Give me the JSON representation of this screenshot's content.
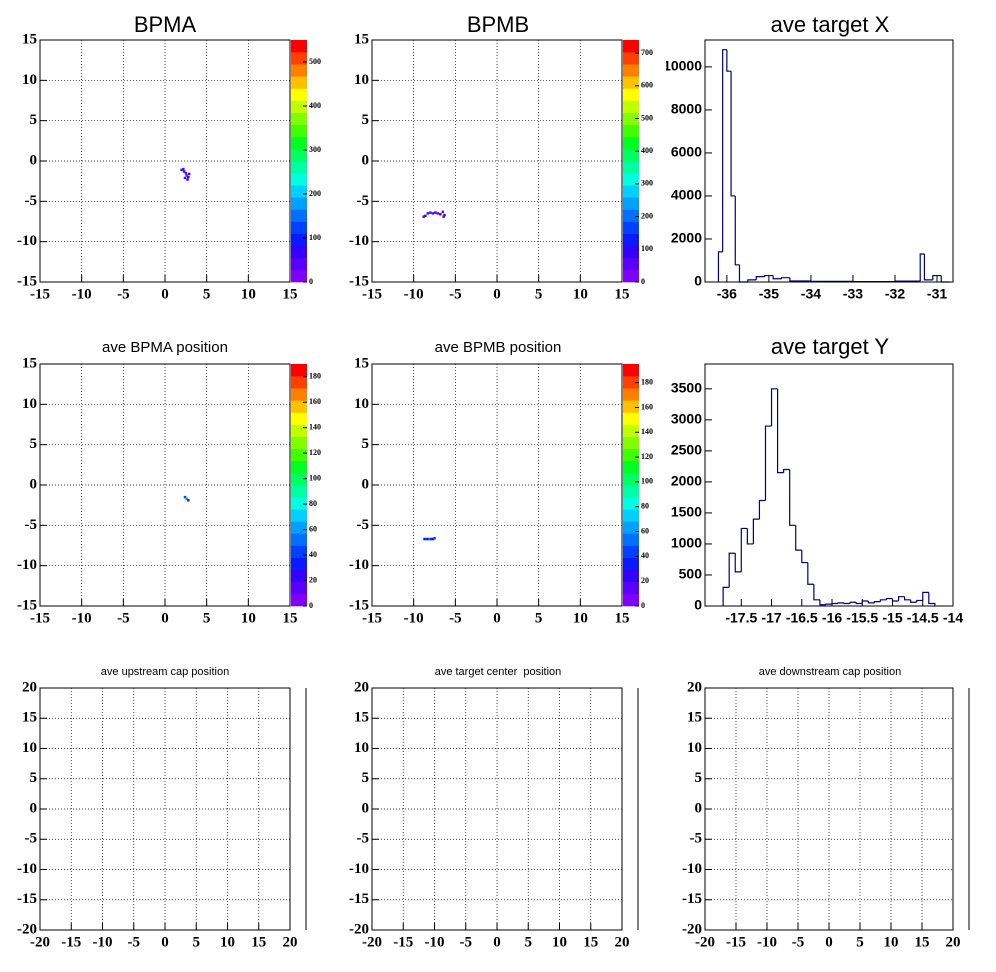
{
  "chart_data": [
    {
      "type": "hist2d",
      "title": "BPMA",
      "xlim": [
        -15,
        15
      ],
      "ylim": [
        -15,
        15
      ],
      "xticks": [
        -15,
        -10,
        -5,
        0,
        5,
        10,
        15
      ],
      "yticks": [
        -15,
        -10,
        -5,
        0,
        5,
        10,
        15
      ],
      "grid": true,
      "x": [
        2.0,
        2.3,
        2.5,
        2.6,
        2.8,
        2.4,
        2.7,
        2.9,
        2.2
      ],
      "y": [
        -1.1,
        -1.3,
        -1.5,
        -1.8,
        -2.0,
        -2.1,
        -2.3,
        -1.6,
        -1.0
      ],
      "z": [
        60,
        90,
        40,
        120,
        80,
        30,
        70,
        50,
        40
      ],
      "zlim": [
        0,
        550
      ],
      "zticks": [
        0,
        100,
        200,
        300,
        400,
        500
      ],
      "palette": [
        "#7f00ff",
        "#5a00ff",
        "#3300ff",
        "#0a1aff",
        "#0040ff",
        "#0070ff",
        "#00a0ff",
        "#00d0ff",
        "#00ffe0",
        "#00ffa0",
        "#00ff60",
        "#00ff20",
        "#40ff00",
        "#80ff00",
        "#c0ff00",
        "#ffff00",
        "#ffc000",
        "#ff8000",
        "#ff4000",
        "#ff0000"
      ]
    },
    {
      "type": "hist2d",
      "title": "BPMB",
      "xlim": [
        -15,
        15
      ],
      "ylim": [
        -15,
        15
      ],
      "xticks": [
        -15,
        -10,
        -5,
        0,
        5,
        10,
        15
      ],
      "yticks": [
        -15,
        -10,
        -5,
        0,
        5,
        10,
        15
      ],
      "grid": true,
      "x": [
        -8.8,
        -8.6,
        -8.3,
        -8.0,
        -7.7,
        -7.4,
        -7.1,
        -6.8,
        -6.5,
        -6.3,
        -6.4
      ],
      "y": [
        -6.9,
        -6.8,
        -6.5,
        -6.4,
        -6.5,
        -6.4,
        -6.5,
        -6.6,
        -6.3,
        -6.7,
        -6.9
      ],
      "z": [
        40,
        80,
        120,
        60,
        50,
        90,
        70,
        100,
        60,
        130,
        50
      ],
      "zlim": [
        0,
        740
      ],
      "zticks": [
        0,
        100,
        200,
        300,
        400,
        500,
        600,
        700
      ],
      "palette": [
        "#7f00ff",
        "#5a00ff",
        "#3300ff",
        "#0a1aff",
        "#0040ff",
        "#0070ff",
        "#00a0ff",
        "#00d0ff",
        "#00ffe0",
        "#00ffa0",
        "#00ff60",
        "#00ff20",
        "#40ff00",
        "#80ff00",
        "#c0ff00",
        "#ffff00",
        "#ffc000",
        "#ff8000",
        "#ff4000",
        "#ff0000"
      ]
    },
    {
      "type": "histogram",
      "title": "ave target X",
      "xlim": [
        -36.52,
        -30.62
      ],
      "ylim": [
        0,
        11250
      ],
      "xticks": [
        -36,
        -35,
        -34,
        -33,
        -32,
        -31
      ],
      "yticks": [
        0,
        2000,
        4000,
        6000,
        8000,
        10000
      ],
      "color": "#000080",
      "bins": [
        -36.2,
        -36.1,
        -36.0,
        -35.9,
        -35.8,
        -35.7,
        -35.5,
        -35.3,
        -35.1,
        -34.9,
        -34.7,
        -34.5,
        -34.0,
        -33.0,
        -32.0,
        -31.4,
        -31.3,
        -31.1,
        -30.9,
        -30.7
      ],
      "values": [
        1400,
        10800,
        9800,
        4000,
        800,
        0,
        100,
        250,
        300,
        150,
        200,
        50,
        30,
        20,
        40,
        1300,
        100,
        300,
        0
      ]
    },
    {
      "type": "hist2d",
      "title": "ave BPMA position",
      "xlim": [
        -15,
        15
      ],
      "ylim": [
        -15,
        15
      ],
      "xticks": [
        -15,
        -10,
        -5,
        0,
        5,
        10,
        15
      ],
      "yticks": [
        -15,
        -10,
        -5,
        0,
        5,
        10,
        15
      ],
      "grid": true,
      "x": [
        2.4,
        2.6,
        2.8
      ],
      "y": [
        -1.5,
        -1.7,
        -1.9
      ],
      "z": [
        40,
        60,
        30
      ],
      "zlim": [
        0,
        190
      ],
      "zticks": [
        0,
        20,
        40,
        60,
        80,
        100,
        120,
        140,
        160,
        180
      ],
      "palette": [
        "#7f00ff",
        "#5a00ff",
        "#3300ff",
        "#0a1aff",
        "#0040ff",
        "#0070ff",
        "#00a0ff",
        "#00d0ff",
        "#00ffe0",
        "#00ffa0",
        "#00ff60",
        "#00ff20",
        "#40ff00",
        "#80ff00",
        "#c0ff00",
        "#ffff00",
        "#ffc000",
        "#ff8000",
        "#ff4000",
        "#ff0000"
      ]
    },
    {
      "type": "hist2d",
      "title": "ave BPMB position",
      "xlim": [
        -15,
        15
      ],
      "ylim": [
        -15,
        15
      ],
      "xticks": [
        -15,
        -10,
        -5,
        0,
        5,
        10,
        15
      ],
      "yticks": [
        -15,
        -10,
        -5,
        0,
        5,
        10,
        15
      ],
      "grid": true,
      "x": [
        -8.7,
        -8.5,
        -8.3,
        -8.1,
        -7.9,
        -7.7,
        -7.5
      ],
      "y": [
        -6.7,
        -6.7,
        -6.7,
        -6.7,
        -6.7,
        -6.7,
        -6.6
      ],
      "z": [
        30,
        40,
        30,
        50,
        40,
        30,
        40
      ],
      "zlim": [
        0,
        195
      ],
      "zticks": [
        0,
        20,
        40,
        60,
        80,
        100,
        120,
        140,
        160,
        180
      ],
      "palette": [
        "#7f00ff",
        "#5a00ff",
        "#3300ff",
        "#0a1aff",
        "#0040ff",
        "#0070ff",
        "#00a0ff",
        "#00d0ff",
        "#00ffe0",
        "#00ffa0",
        "#00ff60",
        "#00ff20",
        "#40ff00",
        "#80ff00",
        "#c0ff00",
        "#ffff00",
        "#ffc000",
        "#ff8000",
        "#ff4000",
        "#ff0000"
      ]
    },
    {
      "type": "histogram",
      "title": "ave target Y",
      "xlim": [
        -18.1,
        -14
      ],
      "ylim": [
        0,
        3900
      ],
      "xticks": [
        -17.5,
        -17,
        -16.5,
        -16,
        -15.5,
        -15,
        -14.5,
        -14
      ],
      "yticks": [
        0,
        500,
        1000,
        1500,
        2000,
        2500,
        3000,
        3500
      ],
      "color": "#000080",
      "bins": [
        -17.8,
        -17.7,
        -17.6,
        -17.5,
        -17.4,
        -17.3,
        -17.2,
        -17.1,
        -17.0,
        -16.9,
        -16.8,
        -16.7,
        -16.6,
        -16.5,
        -16.4,
        -16.3,
        -16.2,
        -16.1,
        -16.0,
        -15.9,
        -15.8,
        -15.7,
        -15.6,
        -15.5,
        -15.4,
        -15.3,
        -15.2,
        -15.1,
        -15.0,
        -14.9,
        -14.8,
        -14.7,
        -14.6,
        -14.5,
        -14.4,
        -14.3
      ],
      "values": [
        300,
        850,
        550,
        1250,
        1000,
        1400,
        1700,
        2900,
        3500,
        2150,
        2200,
        1300,
        900,
        700,
        350,
        100,
        20,
        30,
        40,
        50,
        40,
        60,
        40,
        80,
        50,
        70,
        100,
        120,
        80,
        150,
        100,
        60,
        90,
        220,
        40
      ]
    },
    {
      "type": "hist2d",
      "title": "ave upstream cap position",
      "xlim": [
        -20,
        20
      ],
      "ylim": [
        -20,
        20
      ],
      "xticks": [
        -20,
        -15,
        -10,
        -5,
        0,
        5,
        10,
        15,
        20
      ],
      "yticks": [
        -20,
        -15,
        -10,
        -5,
        0,
        5,
        10,
        15,
        20
      ],
      "grid": true
    },
    {
      "type": "hist2d",
      "title": "ave target center  position",
      "xlim": [
        -20,
        20
      ],
      "ylim": [
        -20,
        20
      ],
      "xticks": [
        -20,
        -15,
        -10,
        -5,
        0,
        5,
        10,
        15,
        20
      ],
      "yticks": [
        -20,
        -15,
        -10,
        -5,
        0,
        5,
        10,
        15,
        20
      ],
      "grid": true
    },
    {
      "type": "hist2d",
      "title": "ave downstream cap position",
      "xlim": [
        -20,
        20
      ],
      "ylim": [
        -20,
        20
      ],
      "xticks": [
        -20,
        -15,
        -10,
        -5,
        0,
        5,
        10,
        15,
        20
      ],
      "yticks": [
        -20,
        -15,
        -10,
        -5,
        0,
        5,
        10,
        15,
        20
      ],
      "grid": true
    }
  ]
}
